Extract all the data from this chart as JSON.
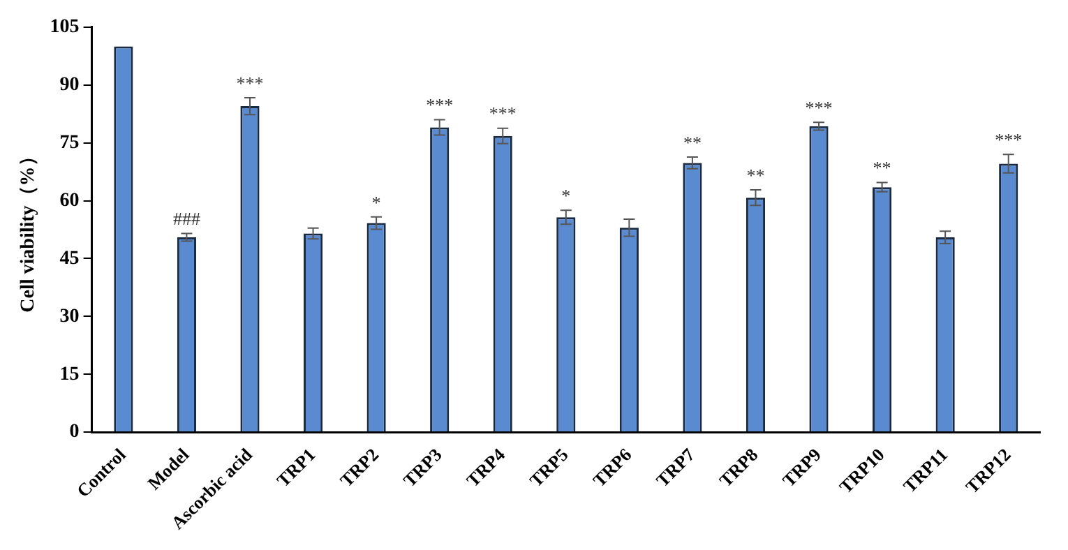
{
  "chart_data": {
    "type": "bar",
    "ylabel": "Cell viability（%）",
    "categories": [
      "Control",
      "Model",
      "Ascorbic acid",
      "TRP1",
      "TRP2",
      "TRP3",
      "TRP4",
      "TRP5",
      "TRP6",
      "TRP7",
      "TRP8",
      "TRP9",
      "TRP10",
      "TRP11",
      "TRP12"
    ],
    "values": [
      100,
      50.5,
      84.5,
      51.5,
      54.2,
      79,
      76.8,
      55.7,
      53,
      69.8,
      60.8,
      79.3,
      63.5,
      50.5,
      69.6
    ],
    "errors": [
      null,
      1,
      2.2,
      1.4,
      1.6,
      2,
      2,
      1.8,
      2.2,
      1.5,
      2,
      1,
      1.2,
      1.6,
      2.4
    ],
    "color": "#5a8ad0",
    "ylim": [
      0,
      105
    ],
    "yticks": [
      0,
      15,
      30,
      45,
      60,
      75,
      90,
      105
    ],
    "grid": false,
    "annotations": [
      {
        "text": "###",
        "x": "Model",
        "y": 51.5
      },
      {
        "text": "***",
        "x": "Ascorbic acid",
        "y": 86.7
      },
      {
        "text": "*",
        "x": "TRP2",
        "y": 55.8
      },
      {
        "text": "***",
        "x": "TRP3",
        "y": 81
      },
      {
        "text": "***",
        "x": "TRP4",
        "y": 78.8
      },
      {
        "text": "*",
        "x": "TRP5",
        "y": 57.5
      },
      {
        "text": "**",
        "x": "TRP7",
        "y": 71.3
      },
      {
        "text": "**",
        "x": "TRP8",
        "y": 62.8
      },
      {
        "text": "***",
        "x": "TRP9",
        "y": 80.3
      },
      {
        "text": "**",
        "x": "TRP10",
        "y": 64.7
      },
      {
        "text": "***",
        "x": "TRP12",
        "y": 72
      }
    ]
  }
}
